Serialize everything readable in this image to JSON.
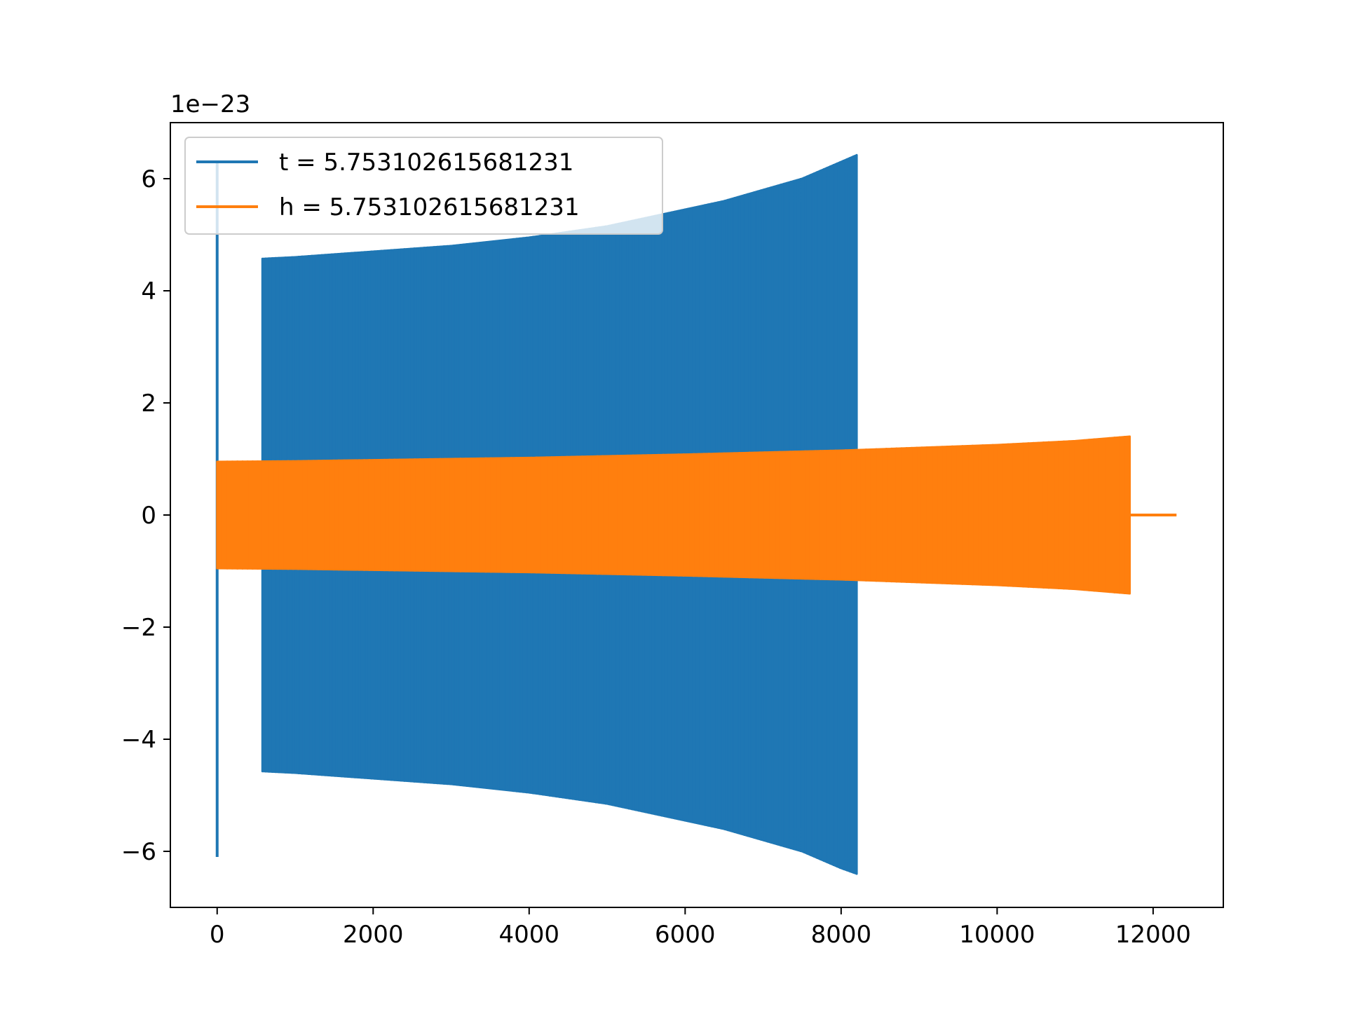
{
  "chart_data": {
    "type": "line",
    "title": "",
    "xlabel": "",
    "ylabel": "",
    "y_offset_text": "1e−23",
    "xlim": [
      -600,
      12900
    ],
    "ylim": [
      -7,
      7
    ],
    "x_ticks": [
      0,
      2000,
      4000,
      6000,
      8000,
      10000,
      12000
    ],
    "x_tick_labels": [
      "0",
      "2000",
      "4000",
      "6000",
      "8000",
      "10000",
      "12000"
    ],
    "y_ticks": [
      -6,
      -4,
      -2,
      0,
      2,
      4,
      6
    ],
    "y_tick_labels": [
      "−6",
      "−4",
      "−2",
      "0",
      "2",
      "4",
      "6"
    ],
    "grid": false,
    "legend_position": "upper-left",
    "series": [
      {
        "name": "t = 5.753102615681231",
        "color": "#1f77b4",
        "style": "dense-oscillation",
        "initial_spike": {
          "x": 0,
          "max": 6.3,
          "min": -6.1
        },
        "envelope": {
          "x": [
            580,
            1000,
            2000,
            3000,
            4000,
            5000,
            6000,
            6500,
            7000,
            7500,
            8000,
            8200
          ],
          "upper": [
            4.57,
            4.6,
            4.7,
            4.8,
            4.95,
            5.15,
            5.45,
            5.6,
            5.8,
            6.0,
            6.3,
            6.42
          ],
          "lower": [
            -4.57,
            -4.6,
            -4.7,
            -4.8,
            -4.95,
            -5.15,
            -5.45,
            -5.6,
            -5.8,
            -6.0,
            -6.3,
            -6.4
          ]
        }
      },
      {
        "name": "h = 5.753102615681231",
        "color": "#ff7f0e",
        "style": "dense-oscillation",
        "envelope": {
          "x": [
            0,
            1000,
            2000,
            4000,
            6000,
            8000,
            10000,
            11000,
            11700
          ],
          "upper": [
            0.95,
            0.96,
            0.98,
            1.02,
            1.08,
            1.15,
            1.25,
            1.32,
            1.4
          ],
          "lower": [
            -0.95,
            -0.96,
            -0.98,
            -1.02,
            -1.08,
            -1.15,
            -1.25,
            -1.32,
            -1.4
          ]
        },
        "tail": {
          "x": [
            11700,
            12300
          ],
          "y": [
            0,
            0
          ]
        }
      }
    ]
  }
}
